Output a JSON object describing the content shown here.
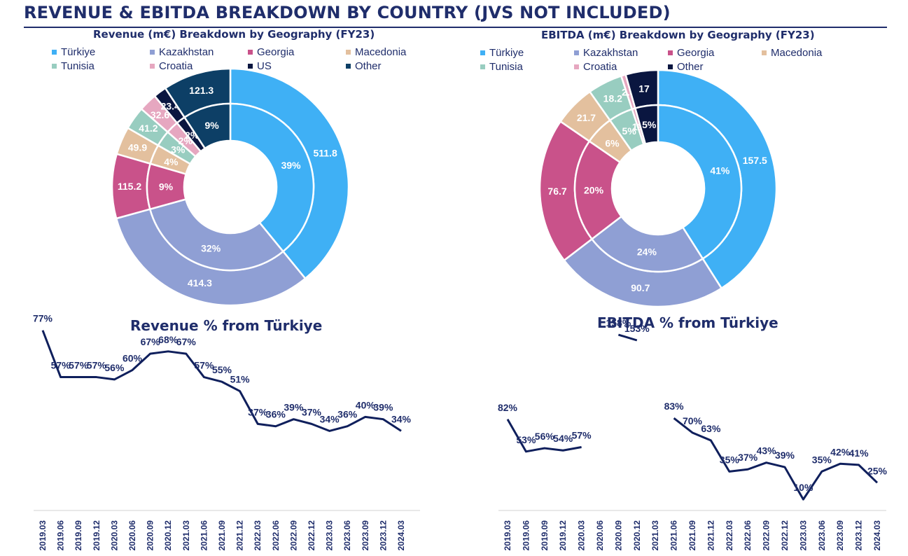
{
  "page": {
    "title": "REVENUE & EBITDA BREAKDOWN BY COUNTRY (JVS NOT INCLUDED)"
  },
  "chart_data": [
    {
      "type": "pie",
      "subtype": "donut-two-ring",
      "title": "Revenue (m€) Breakdown by Geography (FY23)",
      "legend_position": "top",
      "categories": [
        "Türkiye",
        "Kazakhstan",
        "Georgia",
        "Macedonia",
        "Tunisia",
        "Croatia",
        "US",
        "Other"
      ],
      "colors": [
        "#3fb0f5",
        "#8f9fd4",
        "#c9528a",
        "#e3c09e",
        "#98cdc0",
        "#e6a7c0",
        "#0a1640",
        "#0d3f66"
      ],
      "values": [
        511.8,
        414.3,
        115.2,
        49.9,
        41.2,
        32.6,
        23.4,
        121.3
      ],
      "value_labels": [
        "511.8",
        "414.3",
        "115.2",
        "49.9",
        "41.2",
        "32.6",
        "23.4",
        "121.3"
      ],
      "percent_labels": [
        "39%",
        "32%",
        "9%",
        "4%",
        "3%",
        "2%",
        "2%",
        "9%"
      ]
    },
    {
      "type": "pie",
      "subtype": "donut-two-ring",
      "title": "EBITDA (m€) Breakdown by Geography (FY23)",
      "legend_position": "top",
      "categories": [
        "Türkiye",
        "Kazakhstan",
        "Georgia",
        "Macedonia",
        "Tunisia",
        "Croatia",
        "Other"
      ],
      "colors": [
        "#3fb0f5",
        "#8f9fd4",
        "#c9528a",
        "#e3c09e",
        "#98cdc0",
        "#e6a7c0",
        "#0a1640"
      ],
      "values": [
        157.5,
        90.7,
        76.7,
        21.7,
        18.2,
        2.4,
        17
      ],
      "value_labels": [
        "157.5",
        "90.7",
        "76.7",
        "21.7",
        "18.2",
        "2.4",
        "17"
      ],
      "percent_labels": [
        "41%",
        "24%",
        "20%",
        "6%",
        "5%",
        "1%",
        "5%"
      ]
    },
    {
      "type": "line",
      "title": "Revenue % from Türkiye",
      "color": "#0f1f5c",
      "x": [
        "2019.03",
        "2019.06",
        "2019.09",
        "2019.12",
        "2020.03",
        "2020.06",
        "2020.09",
        "2020.12",
        "2021.03",
        "2021.06",
        "2021.09",
        "2021.12",
        "2022.03",
        "2022.06",
        "2022.09",
        "2022.12",
        "2023.03",
        "2023.06",
        "2023.09",
        "2023.12",
        "2024.03"
      ],
      "values": [
        77,
        57,
        57,
        57,
        56,
        60,
        67,
        68,
        67,
        57,
        55,
        51,
        37,
        36,
        39,
        37,
        34,
        36,
        40,
        39,
        34
      ],
      "labels": [
        "77%",
        "57%",
        "57%",
        "57%",
        "56%",
        "60%",
        "67%",
        "68%",
        "67%",
        "57%",
        "55%",
        "51%",
        "37%",
        "36%",
        "39%",
        "37%",
        "34%",
        "36%",
        "40%",
        "39%",
        "34%"
      ],
      "ylim": [
        0,
        85
      ]
    },
    {
      "type": "line",
      "title": "EBITDA % from Türkiye",
      "color": "#0f1f5c",
      "x": [
        "2019.03",
        "2019.06",
        "2019.09",
        "2019.12",
        "2020.03",
        "2020.06",
        "2020.09",
        "2020.12",
        "2021.03",
        "2021.06",
        "2021.09",
        "2021.12",
        "2022.03",
        "2022.06",
        "2022.09",
        "2022.12",
        "2023.03",
        "2023.06",
        "2023.09",
        "2023.12",
        "2024.03"
      ],
      "values": [
        82,
        53,
        56,
        54,
        57,
        null,
        158,
        153,
        null,
        83,
        70,
        63,
        35,
        37,
        43,
        39,
        10,
        35,
        42,
        41,
        25
      ],
      "labels": [
        "82%",
        "53%",
        "56%",
        "54%",
        "57%",
        "",
        "158%",
        "153%",
        "",
        "83%",
        "70%",
        "63%",
        "35%",
        "37%",
        "43%",
        "39%",
        "10%",
        "35%",
        "42%",
        "41%",
        "25%"
      ],
      "ylim": [
        0,
        170
      ]
    }
  ]
}
